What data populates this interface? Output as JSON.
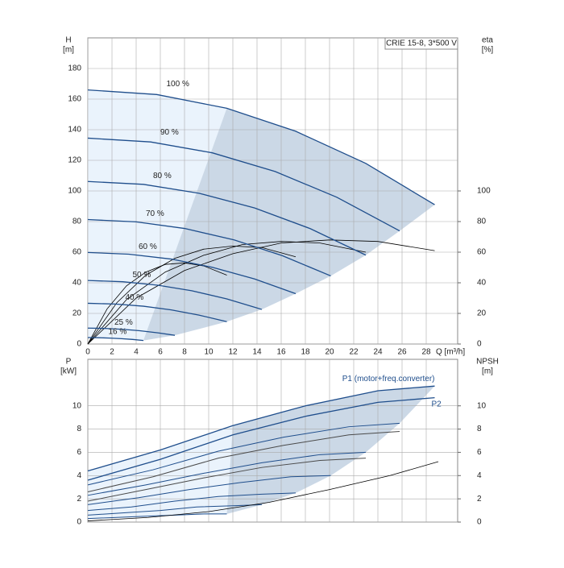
{
  "chart_data": [
    {
      "type": "line",
      "title": "CRIE 15-8, 3*500 V",
      "xlabel": "Q [m³/h]",
      "ylabel": [
        "H",
        "[m]"
      ],
      "y2label": [
        "eta",
        "[%]"
      ],
      "xlim": [
        0,
        30.6
      ],
      "ylim": [
        0,
        200
      ],
      "y2lim": [
        0,
        200
      ],
      "xticks": [
        0,
        2,
        4,
        6,
        8,
        10,
        12,
        14,
        16,
        18,
        20,
        22,
        24,
        26,
        28
      ],
      "yticks": [
        0,
        20,
        40,
        60,
        80,
        100,
        120,
        140,
        160,
        180
      ],
      "y2ticks": [
        0,
        20,
        40,
        60,
        80,
        100
      ],
      "grid": true,
      "fill_colors": [
        "#eaf3fc",
        "#cbd8e6"
      ],
      "series": [
        {
          "name": "100 %",
          "color": "#1f4e8c",
          "x": [
            0,
            5.7,
            11.5,
            17.2,
            23,
            28.7
          ],
          "values": [
            166,
            163,
            154,
            139,
            118,
            91
          ]
        },
        {
          "name": "90 %",
          "color": "#1f4e8c",
          "x": [
            0,
            5.2,
            10.3,
            15.5,
            20.6,
            25.8
          ],
          "values": [
            134.5,
            132,
            124.9,
            112.7,
            95.9,
            73.9
          ]
        },
        {
          "name": "80 %",
          "color": "#1f4e8c",
          "x": [
            0,
            4.6,
            9.2,
            13.8,
            18.4,
            23
          ],
          "values": [
            106.2,
            104.3,
            98.5,
            88.9,
            75.4,
            58.1
          ]
        },
        {
          "name": "70 %",
          "color": "#1f4e8c",
          "x": [
            0,
            4,
            8,
            12.1,
            16.1,
            20.1
          ],
          "values": [
            81.3,
            79.8,
            75.5,
            68,
            57.7,
            44.5
          ]
        },
        {
          "name": "60 %",
          "color": "#1f4e8c",
          "x": [
            0,
            3.4,
            6.9,
            10.3,
            13.8,
            17.2
          ],
          "values": [
            59.8,
            58.7,
            55.5,
            50.1,
            42.5,
            32.9
          ]
        },
        {
          "name": "50 %",
          "color": "#1f4e8c",
          "x": [
            0,
            2.9,
            5.8,
            8.6,
            11.5,
            14.4
          ],
          "values": [
            41.5,
            40.7,
            38.4,
            34.8,
            29.5,
            22.6
          ]
        },
        {
          "name": "40 %",
          "color": "#1f4e8c",
          "x": [
            0,
            2.3,
            4.6,
            6.9,
            9.2,
            11.5
          ],
          "values": [
            26.6,
            26.1,
            24.7,
            22.3,
            18.9,
            14.6
          ]
        },
        {
          "name": "25 %",
          "color": "#1f4e8c",
          "x": [
            0,
            1.4,
            2.9,
            4.3,
            5.8,
            7.2
          ],
          "values": [
            10.4,
            10.2,
            9.6,
            8.7,
            7.3,
            5.7
          ]
        },
        {
          "name": "16 %",
          "color": "#1f4e8c",
          "x": [
            0,
            0.9,
            1.8,
            2.8,
            3.7,
            4.6
          ],
          "values": [
            4.2,
            4.1,
            3.9,
            3.5,
            3,
            2.3
          ]
        }
      ],
      "other_series": [
        {
          "color": "#000000",
          "axis": "y2",
          "x": [
            0,
            4,
            8,
            12,
            16,
            20,
            24,
            28.7
          ],
          "values": [
            0,
            30,
            48,
            59,
            66,
            68,
            67,
            61
          ]
        },
        {
          "color": "#000000",
          "axis": "y2",
          "x": [
            0,
            3.2,
            6.4,
            9.6,
            12.8,
            16,
            19.2,
            23
          ],
          "values": [
            0,
            29,
            47,
            58,
            65,
            67,
            66,
            60
          ]
        },
        {
          "color": "#000000",
          "axis": "y2",
          "x": [
            0,
            2.4,
            4.8,
            7.2,
            9.6,
            12,
            14.4,
            17.2
          ],
          "values": [
            0,
            27,
            45,
            56,
            62,
            64,
            63,
            57
          ]
        },
        {
          "color": "#000000",
          "axis": "y2",
          "x": [
            0,
            1.6,
            3.2,
            4.8,
            6.4,
            8,
            9.6,
            11.5
          ],
          "values": [
            0,
            23,
            38,
            47,
            52,
            53,
            51,
            45
          ]
        }
      ]
    },
    {
      "type": "line",
      "ylabel": [
        "P",
        "[kW]"
      ],
      "y2label": [
        "NPSH",
        "[m]"
      ],
      "xlim": [
        0,
        30.6
      ],
      "ylim": [
        0,
        14
      ],
      "y2lim": [
        0,
        14
      ],
      "xticks": [
        0,
        2,
        4,
        6,
        8,
        10,
        12,
        14,
        16,
        18,
        20,
        22,
        24,
        26,
        28
      ],
      "yticks": [
        0,
        2,
        4,
        6,
        8,
        10
      ],
      "y2ticks": [
        0,
        2,
        4,
        6,
        8,
        10
      ],
      "grid": true,
      "fill_colors": [
        "#eaf3fc",
        "#cbd8e6"
      ],
      "series": [
        {
          "name": "P1 (motor+freq.converter)",
          "color": "#1f4e8c",
          "x": [
            0,
            6,
            12,
            18,
            24,
            28.7
          ],
          "values": [
            4.4,
            6.2,
            8.3,
            10,
            11.3,
            11.7
          ]
        },
        {
          "name": "P2",
          "color": "#1f4e8c",
          "x": [
            0,
            6,
            12,
            18,
            24,
            28.7
          ],
          "values": [
            3.6,
            5.4,
            7.5,
            9.1,
            10.3,
            10.7
          ]
        }
      ],
      "other_series": [
        {
          "color": "#1f4e8c",
          "x": [
            0,
            5.4,
            10.8,
            16.2,
            21.6,
            25.8
          ],
          "values": [
            3.2,
            4.5,
            6.1,
            7.3,
            8.2,
            8.5
          ]
        },
        {
          "color": "#1f4e8c",
          "x": [
            0,
            4.8,
            9.6,
            14.4,
            19.2,
            23
          ],
          "values": [
            2.3,
            3.2,
            4.2,
            5.1,
            5.8,
            6
          ]
        },
        {
          "color": "#1f4e8c",
          "x": [
            0,
            4.2,
            8.4,
            12.6,
            16.8,
            20.1
          ],
          "values": [
            1.5,
            2.1,
            2.8,
            3.4,
            3.9,
            4
          ]
        },
        {
          "color": "#1f4e8c",
          "x": [
            0,
            3.6,
            7.2,
            10.8,
            14.4,
            17.2
          ],
          "values": [
            1,
            1.3,
            1.8,
            2.2,
            2.4,
            2.5
          ]
        },
        {
          "color": "#1f4e8c",
          "x": [
            0,
            3,
            6,
            9,
            12,
            14.4
          ],
          "values": [
            0.6,
            0.8,
            1,
            1.3,
            1.4,
            1.5
          ]
        },
        {
          "color": "#1f4e8c",
          "x": [
            0,
            2.4,
            4.8,
            7.2,
            9.6,
            11.5
          ],
          "values": [
            0.3,
            0.4,
            0.5,
            0.6,
            0.7,
            0.7
          ]
        },
        {
          "color": "#4a4a4a",
          "x": [
            0,
            5.4,
            10.8,
            16.2,
            21.6,
            25.8
          ],
          "values": [
            2.6,
            3.9,
            5.5,
            6.6,
            7.5,
            7.8
          ]
        },
        {
          "color": "#4a4a4a",
          "x": [
            0,
            4.8,
            9.6,
            14.4,
            19.2,
            23
          ],
          "values": [
            1.8,
            2.8,
            3.8,
            4.7,
            5.3,
            5.5
          ]
        },
        {
          "color": "#000000",
          "axis": "y2",
          "x": [
            0,
            5,
            10,
            15,
            20,
            25,
            29
          ],
          "values": [
            0.1,
            0.4,
            0.9,
            1.7,
            2.8,
            4,
            5.2
          ]
        }
      ]
    }
  ]
}
